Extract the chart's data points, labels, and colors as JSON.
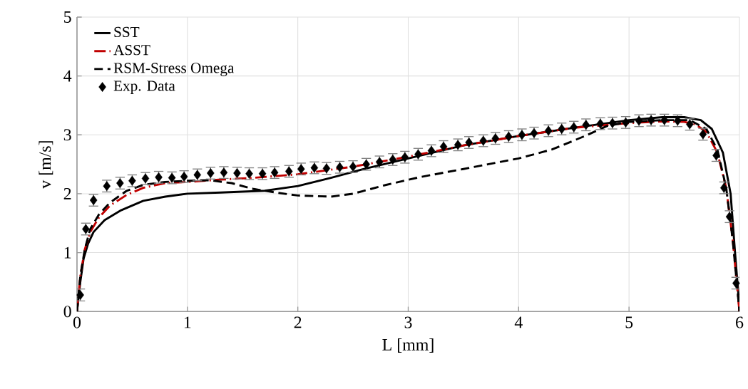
{
  "chart_data": {
    "type": "line",
    "xlabel": "L [mm]",
    "ylabel": "v [m/s]",
    "xlim": [
      0,
      6
    ],
    "ylim": [
      0,
      5
    ],
    "xticks": [
      0,
      1,
      2,
      3,
      4,
      5,
      6
    ],
    "yticks": [
      0,
      1,
      2,
      3,
      4,
      5
    ],
    "grid": true,
    "legend": "top left",
    "series": [
      {
        "name": "SST",
        "color": "#000000",
        "line_style": "solid",
        "marker": "none",
        "x": [
          0,
          0.03,
          0.06,
          0.1,
          0.15,
          0.25,
          0.4,
          0.6,
          0.8,
          1.0,
          1.3,
          1.7,
          2.0,
          2.3,
          2.6,
          3.0,
          3.5,
          4.0,
          4.5,
          5.0,
          5.3,
          5.5,
          5.65,
          5.75,
          5.85,
          5.92,
          5.96,
          5.99,
          6.0
        ],
        "values": [
          0,
          0.5,
          0.9,
          1.15,
          1.35,
          1.55,
          1.72,
          1.88,
          1.95,
          2.0,
          2.02,
          2.05,
          2.13,
          2.27,
          2.42,
          2.6,
          2.82,
          2.98,
          3.12,
          3.25,
          3.3,
          3.3,
          3.25,
          3.1,
          2.7,
          2.0,
          1.0,
          0.3,
          0
        ]
      },
      {
        "name": "ASST",
        "color": "#c00000",
        "line_style": "dashdot",
        "marker": "none",
        "x": [
          0,
          0.03,
          0.07,
          0.12,
          0.2,
          0.3,
          0.45,
          0.6,
          0.8,
          1.0,
          1.3,
          1.6,
          2.0,
          2.5,
          3.0,
          3.5,
          4.0,
          4.5,
          5.0,
          5.3,
          5.5,
          5.6,
          5.7,
          5.8,
          5.88,
          5.94,
          5.98,
          6.0
        ],
        "values": [
          0,
          0.6,
          1.05,
          1.35,
          1.6,
          1.8,
          1.98,
          2.1,
          2.18,
          2.2,
          2.24,
          2.27,
          2.33,
          2.46,
          2.63,
          2.82,
          2.98,
          3.12,
          3.2,
          3.23,
          3.22,
          3.18,
          3.05,
          2.7,
          2.1,
          1.2,
          0.4,
          0
        ]
      },
      {
        "name": "RSM-Stress Omega",
        "color": "#000000",
        "line_style": "dashed",
        "marker": "none",
        "x": [
          0,
          0.03,
          0.07,
          0.12,
          0.2,
          0.3,
          0.45,
          0.6,
          0.8,
          1.0,
          1.2,
          1.4,
          1.6,
          1.8,
          2.0,
          2.3,
          2.5,
          2.8,
          3.1,
          3.5,
          4.0,
          4.3,
          4.6,
          4.8,
          5.0,
          5.3,
          5.55,
          5.7,
          5.8,
          5.88,
          5.94,
          5.98,
          6.0
        ],
        "values": [
          0,
          0.6,
          1.05,
          1.4,
          1.65,
          1.85,
          2.05,
          2.15,
          2.2,
          2.22,
          2.23,
          2.18,
          2.08,
          2.02,
          1.97,
          1.95,
          2.0,
          2.15,
          2.28,
          2.42,
          2.6,
          2.75,
          2.98,
          3.15,
          3.22,
          3.25,
          3.25,
          3.1,
          2.75,
          2.1,
          1.2,
          0.4,
          0
        ]
      },
      {
        "name": "Exp. Data",
        "type": "scatter",
        "color": "#000000",
        "marker": "diamond",
        "x": [
          0.03,
          0.08,
          0.15,
          0.27,
          0.39,
          0.5,
          0.62,
          0.74,
          0.86,
          0.97,
          1.09,
          1.21,
          1.33,
          1.45,
          1.56,
          1.68,
          1.79,
          1.92,
          2.03,
          2.15,
          2.26,
          2.38,
          2.5,
          2.62,
          2.74,
          2.86,
          2.97,
          3.09,
          3.21,
          3.32,
          3.45,
          3.55,
          3.68,
          3.79,
          3.91,
          4.03,
          4.14,
          4.27,
          4.39,
          4.5,
          4.61,
          4.74,
          4.85,
          4.97,
          5.09,
          5.2,
          5.32,
          5.44,
          5.55,
          5.67,
          5.79,
          5.86,
          5.91,
          5.97
        ],
        "values": [
          0.28,
          1.4,
          1.89,
          2.13,
          2.18,
          2.22,
          2.26,
          2.28,
          2.27,
          2.29,
          2.32,
          2.35,
          2.36,
          2.35,
          2.34,
          2.34,
          2.36,
          2.38,
          2.42,
          2.44,
          2.43,
          2.45,
          2.46,
          2.5,
          2.54,
          2.58,
          2.62,
          2.67,
          2.73,
          2.8,
          2.83,
          2.87,
          2.9,
          2.94,
          2.97,
          3.0,
          3.03,
          3.07,
          3.1,
          3.13,
          3.17,
          3.19,
          3.2,
          3.21,
          3.24,
          3.25,
          3.25,
          3.24,
          3.18,
          3.01,
          2.65,
          2.1,
          1.61,
          0.48
        ],
        "errors": [
          0.1,
          0.1,
          0.1,
          0.1,
          0.1,
          0.1,
          0.1,
          0.1,
          0.1,
          0.1,
          0.1,
          0.1,
          0.1,
          0.1,
          0.1,
          0.1,
          0.1,
          0.1,
          0.1,
          0.1,
          0.1,
          0.1,
          0.1,
          0.1,
          0.1,
          0.1,
          0.1,
          0.1,
          0.1,
          0.1,
          0.1,
          0.1,
          0.1,
          0.1,
          0.1,
          0.1,
          0.1,
          0.1,
          0.1,
          0.1,
          0.1,
          0.1,
          0.1,
          0.1,
          0.1,
          0.1,
          0.1,
          0.1,
          0.1,
          0.1,
          0.1,
          0.1,
          0.1,
          0.1
        ]
      }
    ]
  }
}
